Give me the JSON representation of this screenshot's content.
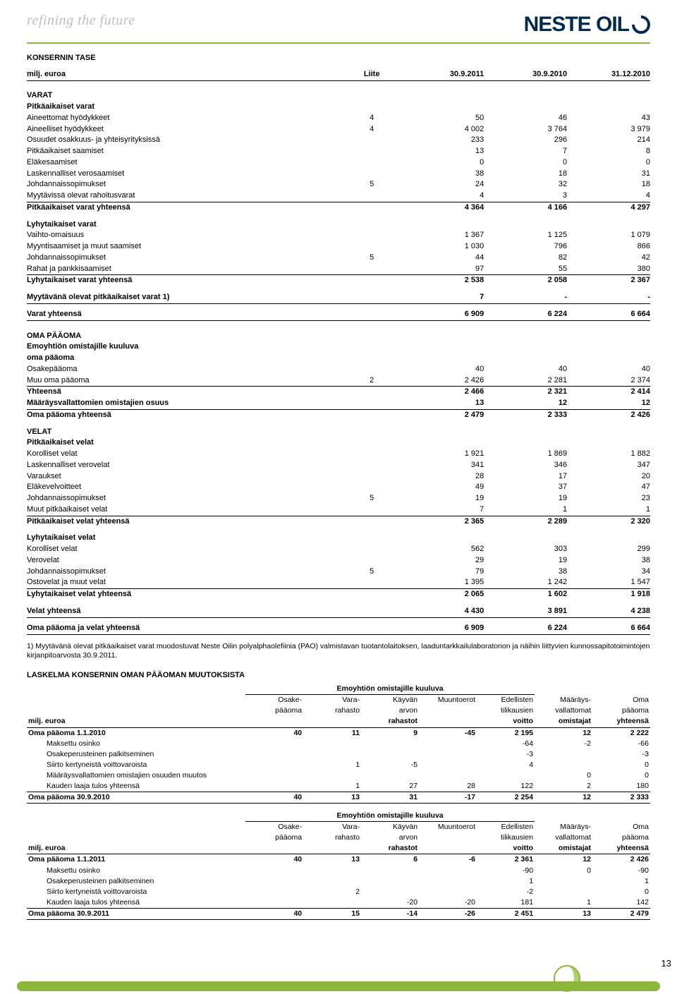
{
  "header": {
    "tagline": "refining the future",
    "logo_text": "NESTE OIL"
  },
  "title": "KONSERNIN TASE",
  "columns": {
    "unit": "milj. euroa",
    "note": "Liite",
    "periods": [
      "30.9.2011",
      "30.9.2010",
      "31.12.2010"
    ]
  },
  "sections": [
    {
      "type": "header"
    },
    {
      "type": "gap_big"
    },
    {
      "type": "head",
      "label": "VARAT"
    },
    {
      "type": "head",
      "label": "Pitkäaikaiset varat"
    },
    {
      "type": "row",
      "label": "Aineettomat hyödykkeet",
      "note": "4",
      "v": [
        "50",
        "46",
        "43"
      ]
    },
    {
      "type": "row",
      "label": "Aineelliset hyödykkeet",
      "note": "4",
      "v": [
        "4 002",
        "3 764",
        "3 979"
      ]
    },
    {
      "type": "row",
      "label": "Osuudet osakkuus- ja yhteisyrityksissä",
      "v": [
        "233",
        "296",
        "214"
      ]
    },
    {
      "type": "row",
      "label": "Pitkäaikaiset saamiset",
      "v": [
        "13",
        "7",
        "8"
      ]
    },
    {
      "type": "row",
      "label": "Eläkesaamiset",
      "v": [
        "0",
        "0",
        "0"
      ]
    },
    {
      "type": "row",
      "label": "Laskennalliset verosaamiset",
      "v": [
        "38",
        "18",
        "31"
      ]
    },
    {
      "type": "row",
      "label": "Johdannaissopimukset",
      "note": "5",
      "v": [
        "24",
        "32",
        "18"
      ]
    },
    {
      "type": "row",
      "label": "Myytävissä olevat rahoitusvarat",
      "v": [
        "4",
        "3",
        "4"
      ],
      "underline": true
    },
    {
      "type": "row",
      "label": "Pitkäaikaiset varat yhteensä",
      "v": [
        "4 364",
        "4 166",
        "4 297"
      ],
      "bold": true
    },
    {
      "type": "gap"
    },
    {
      "type": "head",
      "label": "Lyhytaikaiset varat"
    },
    {
      "type": "row",
      "label": "Vaihto-omaisuus",
      "v": [
        "1 367",
        "1 125",
        "1 079"
      ]
    },
    {
      "type": "row",
      "label": "Myyntisaamiset ja muut saamiset",
      "v": [
        "1 030",
        "796",
        "866"
      ]
    },
    {
      "type": "row",
      "label": "Johdannaissopimukset",
      "note": "5",
      "v": [
        "44",
        "82",
        "42"
      ]
    },
    {
      "type": "row",
      "label": "Rahat ja pankkisaamiset",
      "v": [
        "97",
        "55",
        "380"
      ],
      "underline": true
    },
    {
      "type": "row",
      "label": "Lyhytaikaiset varat yhteensä",
      "v": [
        "2 538",
        "2 058",
        "2 367"
      ],
      "bold": true
    },
    {
      "type": "gap"
    },
    {
      "type": "row",
      "label": "Myytävänä olevat pitkäaikaiset varat 1)",
      "v": [
        "7",
        "-",
        "-"
      ],
      "bold": true,
      "underline": true
    },
    {
      "type": "gap"
    },
    {
      "type": "row",
      "label": "Varat yhteensä",
      "v": [
        "6 909",
        "6 224",
        "6 664"
      ],
      "bold": true,
      "underline": true
    },
    {
      "type": "gap_big"
    },
    {
      "type": "head",
      "label": "OMA PÄÄOMA"
    },
    {
      "type": "head",
      "label": "Emoyhtiön omistajille kuuluva"
    },
    {
      "type": "head",
      "label": "oma pääoma"
    },
    {
      "type": "row",
      "label": "Osakepääoma",
      "v": [
        "40",
        "40",
        "40"
      ]
    },
    {
      "type": "row",
      "label": "Muu oma pääoma",
      "note": "2",
      "v": [
        "2 426",
        "2 281",
        "2 374"
      ],
      "underline": true
    },
    {
      "type": "row",
      "label": "Yhteensä",
      "v": [
        "2 466",
        "2 321",
        "2 414"
      ],
      "bold": true
    },
    {
      "type": "row",
      "label": "Määräysvallattomien omistajien osuus",
      "v": [
        "13",
        "12",
        "12"
      ],
      "bold": true,
      "underline": true
    },
    {
      "type": "row",
      "label": "Oma pääoma yhteensä",
      "v": [
        "2 479",
        "2 333",
        "2 426"
      ],
      "bold": true
    },
    {
      "type": "gap"
    },
    {
      "type": "head",
      "label": "VELAT"
    },
    {
      "type": "head",
      "label": "Pitkäaikaiset velat"
    },
    {
      "type": "row",
      "label": "Korolliset velat",
      "v": [
        "1 921",
        "1 869",
        "1 882"
      ]
    },
    {
      "type": "row",
      "label": "Laskennalliset verovelat",
      "v": [
        "341",
        "346",
        "347"
      ]
    },
    {
      "type": "row",
      "label": "Varaukset",
      "v": [
        "28",
        "17",
        "20"
      ]
    },
    {
      "type": "row",
      "label": "Eläkevelvoitteet",
      "v": [
        "49",
        "37",
        "47"
      ]
    },
    {
      "type": "row",
      "label": "Johdannaissopimukset",
      "note": "5",
      "v": [
        "19",
        "19",
        "23"
      ]
    },
    {
      "type": "row",
      "label": "Muut pitkäaikaiset velat",
      "v": [
        "7",
        "1",
        "1"
      ],
      "underline": true
    },
    {
      "type": "row",
      "label": "Pitkäaikaiset velat yhteensä",
      "v": [
        "2 365",
        "2 289",
        "2 320"
      ],
      "bold": true
    },
    {
      "type": "gap"
    },
    {
      "type": "head",
      "label": "Lyhytaikaiset velat"
    },
    {
      "type": "row",
      "label": "Korolliset velat",
      "v": [
        "562",
        "303",
        "299"
      ]
    },
    {
      "type": "row",
      "label": "Verovelat",
      "v": [
        "29",
        "19",
        "38"
      ]
    },
    {
      "type": "row",
      "label": "Johdannaissopimukset",
      "note": "5",
      "v": [
        "79",
        "38",
        "34"
      ]
    },
    {
      "type": "row",
      "label": "Ostovelat ja muut velat",
      "v": [
        "1 395",
        "1 242",
        "1 547"
      ],
      "underline": true
    },
    {
      "type": "row",
      "label": "Lyhytaikaiset velat yhteensä",
      "v": [
        "2 065",
        "1 602",
        "1 918"
      ],
      "bold": true
    },
    {
      "type": "gap"
    },
    {
      "type": "row",
      "label": "Velat yhteensä",
      "v": [
        "4 430",
        "3 891",
        "4 238"
      ],
      "bold": true,
      "underline": true
    },
    {
      "type": "gap"
    },
    {
      "type": "row",
      "label": "Oma pääoma ja velat yhteensä",
      "v": [
        "6 909",
        "6 224",
        "6 664"
      ],
      "bold": true,
      "underline": true
    }
  ],
  "footnote": "1) Myytävänä olevat pitkäaikaiset varat muodostuvat Neste Oilin polyalphaolefiinia (PAO) valmistavan tuotantolaitoksen, laaduntarkkailulaboratorion ja näihin liittyvien kunnossapitotoimintojen kirjanpitoarvosta 30.9.2011.",
  "equity_title": "LASKELMA KONSERNIN OMAN PÄÄOMAN MUUTOKSISTA",
  "equity_span": "Emoyhtiön omistajille kuuluva",
  "equity_cols": {
    "unit": "milj. euroa",
    "h1": [
      "Osake-",
      "pääoma"
    ],
    "h2": [
      "Vara-",
      "rahasto"
    ],
    "h3": [
      "Käyvän",
      "arvon",
      "rahastot"
    ],
    "h4": [
      "Muuntoerot"
    ],
    "h5": [
      "Edellisten",
      "tilikausien",
      "voitto"
    ],
    "h6": [
      "Määräys-",
      "vallattomat",
      "omistajat"
    ],
    "h7": [
      "Oma",
      "pääoma",
      "yhteensä"
    ]
  },
  "equity_blocks": [
    {
      "open": {
        "label": "Oma pääoma 1.1.2010",
        "v": [
          "40",
          "11",
          "9",
          "-45",
          "2 195",
          "12",
          "2 222"
        ]
      },
      "rows": [
        {
          "label": "Maksettu osinko",
          "v": [
            "",
            "",
            "",
            "",
            "-64",
            "-2",
            "-66"
          ]
        },
        {
          "label": "Osakeperusteinen palkitseminen",
          "v": [
            "",
            "",
            "",
            "",
            "-3",
            "",
            "-3"
          ]
        },
        {
          "label": "Siirto kertyneistä voittovaroista",
          "v": [
            "",
            "1",
            "-5",
            "",
            "4",
            "",
            "0"
          ]
        },
        {
          "label": "Määräysvallattomien omistajien osuuden muutos",
          "v": [
            "",
            "",
            "",
            "",
            "",
            "0",
            "0"
          ]
        },
        {
          "label": "Kauden laaja tulos yhteensä",
          "v": [
            "",
            "1",
            "27",
            "28",
            "122",
            "2",
            "180"
          ]
        }
      ],
      "close": {
        "label": "Oma pääoma 30.9.2010",
        "v": [
          "40",
          "13",
          "31",
          "-17",
          "2 254",
          "12",
          "2 333"
        ]
      }
    },
    {
      "open": {
        "label": "Oma pääoma 1.1.2011",
        "v": [
          "40",
          "13",
          "6",
          "-6",
          "2 361",
          "12",
          "2 426"
        ]
      },
      "rows": [
        {
          "label": "Maksettu osinko",
          "v": [
            "",
            "",
            "",
            "",
            "-90",
            "0",
            "-90"
          ]
        },
        {
          "label": "Osakeperusteinen palkitseminen",
          "v": [
            "",
            "",
            "",
            "",
            "1",
            "",
            "1"
          ]
        },
        {
          "label": "Siirto kertyneistä voittovaroista",
          "v": [
            "",
            "2",
            "",
            "",
            "-2",
            "",
            "0"
          ]
        },
        {
          "label": "Kauden laaja tulos yhteensä",
          "v": [
            "",
            "",
            "-20",
            "-20",
            "181",
            "1",
            "142"
          ]
        }
      ],
      "close": {
        "label": "Oma pääoma 30.9.2011",
        "v": [
          "40",
          "15",
          "-14",
          "-26",
          "2 451",
          "13",
          "2 479"
        ]
      }
    }
  ],
  "page_number": "13",
  "colors": {
    "accent": "#8db63c",
    "navy": "#052a4e"
  }
}
